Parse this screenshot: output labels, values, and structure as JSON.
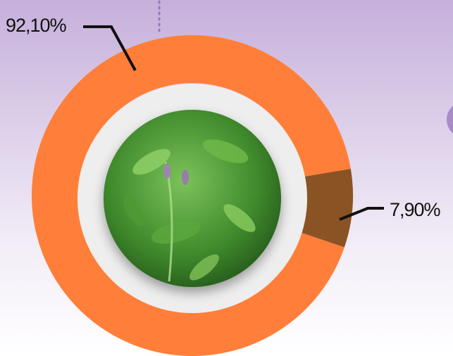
{
  "chart_data": {
    "type": "donut",
    "values": [
      92.1,
      7.9
    ],
    "value_labels": [
      "92,10%",
      "7,90%"
    ],
    "colors": [
      "#ff7f3a",
      "#8a5324"
    ]
  }
}
